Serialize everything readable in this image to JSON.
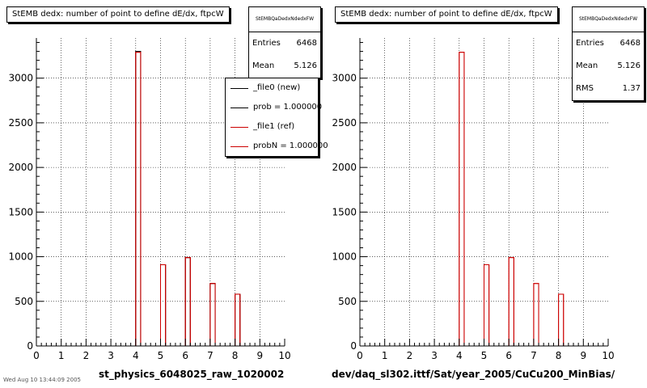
{
  "colors": {
    "reference": "#cc0000",
    "new": "#000000",
    "grid": "#000000"
  },
  "footer_stamp": "Wed Aug 10 13:44:09 2005",
  "left_panel": {
    "title": "StEMB dedx: number of point to define dE/dx, ftpcW",
    "stats": {
      "name": "StEMBQaDedxNdedxFW",
      "rows": [
        {
          "label": "Entries",
          "value": "6468"
        },
        {
          "label": "Mean",
          "value": "5.126"
        }
      ]
    },
    "legend": [
      {
        "label": "_file0 (new)",
        "color": "#000000"
      },
      {
        "label": "prob = 1.000000",
        "color": "#000000"
      },
      {
        "label": "_file1 (ref)",
        "color": "#cc0000"
      },
      {
        "label": "probN = 1.000000",
        "color": "#cc0000"
      }
    ],
    "xlabel": "st_physics_6048025_raw_1020002"
  },
  "right_panel": {
    "title": "StEMB dedx: number of point to define dE/dx, ftpcW",
    "stats": {
      "name": "StEMBQaDedxNdedxFW",
      "rows": [
        {
          "label": "Entries",
          "value": "6468"
        },
        {
          "label": "Mean",
          "value": "5.126"
        },
        {
          "label": "RMS",
          "value": "1.37"
        }
      ]
    },
    "xlabel": "dev/daq_sl302.ittf/Sat/year_2005/CuCu200_MinBias/"
  },
  "chart_data": [
    {
      "type": "bar",
      "title": "StEMB dedx: number of point to define dE/dx, ftpcW",
      "xlabel": "st_physics_6048025_raw_1020002",
      "ylabel": "",
      "xlim": [
        0,
        10
      ],
      "ylim": [
        0,
        3450
      ],
      "xticks": [
        0,
        1,
        2,
        3,
        4,
        5,
        6,
        7,
        8,
        9,
        10
      ],
      "yticks": [
        0,
        500,
        1000,
        1500,
        2000,
        2500,
        3000
      ],
      "grid": true,
      "legend_position": "top-right",
      "bins": {
        "low": 0,
        "width": 0.2,
        "count": 50
      },
      "series": [
        {
          "name": "_file0 (new)",
          "color": "#000000",
          "bins_with_counts": [
            {
              "x": 4.1,
              "y": 3300
            },
            {
              "x": 5.1,
              "y": 910
            },
            {
              "x": 6.1,
              "y": 990
            },
            {
              "x": 7.1,
              "y": 700
            },
            {
              "x": 8.1,
              "y": 580
            }
          ]
        },
        {
          "name": "_file1 (ref)",
          "color": "#cc0000",
          "bins_with_counts": [
            {
              "x": 4.1,
              "y": 3290
            },
            {
              "x": 5.1,
              "y": 910
            },
            {
              "x": 6.1,
              "y": 990
            },
            {
              "x": 7.1,
              "y": 700
            },
            {
              "x": 8.1,
              "y": 580
            }
          ]
        }
      ]
    },
    {
      "type": "bar",
      "title": "StEMB dedx: number of point to define dE/dx, ftpcW",
      "xlabel": "dev/daq_sl302.ittf/Sat/year_2005/CuCu200_MinBias/",
      "ylabel": "",
      "xlim": [
        0,
        10
      ],
      "ylim": [
        0,
        3450
      ],
      "xticks": [
        0,
        1,
        2,
        3,
        4,
        5,
        6,
        7,
        8,
        9,
        10
      ],
      "yticks": [
        0,
        500,
        1000,
        1500,
        2000,
        2500,
        3000
      ],
      "grid": true,
      "bins": {
        "low": 0,
        "width": 0.2,
        "count": 50
      },
      "series": [
        {
          "name": "",
          "color": "#cc0000",
          "bins_with_counts": [
            {
              "x": 4.1,
              "y": 3290
            },
            {
              "x": 5.1,
              "y": 910
            },
            {
              "x": 6.1,
              "y": 990
            },
            {
              "x": 7.1,
              "y": 700
            },
            {
              "x": 8.1,
              "y": 580
            }
          ]
        }
      ]
    }
  ]
}
